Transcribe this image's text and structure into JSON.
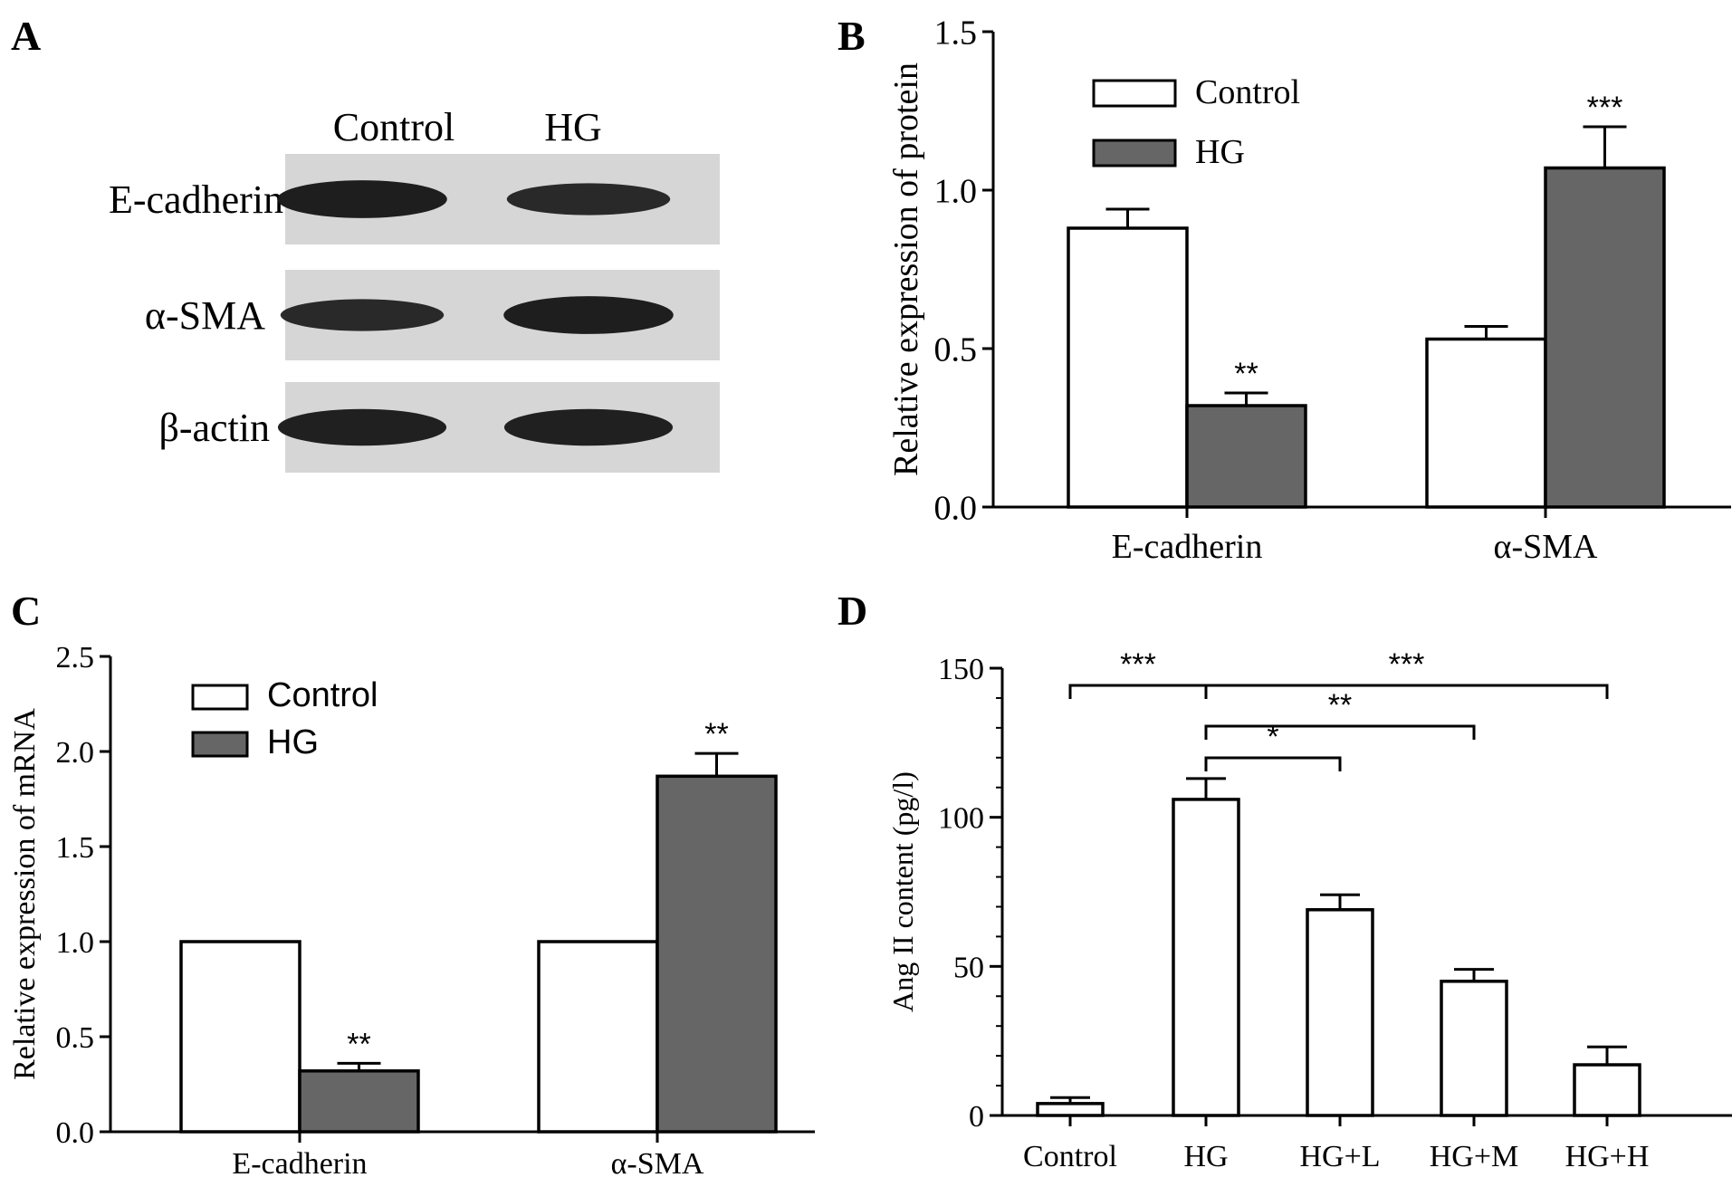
{
  "panel_a": {
    "letter": "A",
    "columns": [
      "Control",
      "HG"
    ],
    "bands": [
      {
        "label": "E-cadherin",
        "intensity": [
          0.95,
          0.8
        ]
      },
      {
        "label": "α-SMA",
        "intensity": [
          0.8,
          0.95
        ]
      },
      {
        "label": "β-actin",
        "intensity": [
          0.92,
          0.92
        ]
      }
    ],
    "colors": {
      "membrane": "#d6d6d6",
      "band": "#1a1a1a"
    }
  },
  "chart_data": [
    {
      "panel": "B",
      "type": "bar",
      "categories": [
        "E-cadherin",
        "α-SMA"
      ],
      "series": [
        {
          "name": "Control",
          "values": [
            0.88,
            0.53
          ],
          "errors": [
            0.06,
            0.04
          ],
          "color": "#ffffff"
        },
        {
          "name": "HG",
          "values": [
            0.32,
            1.07
          ],
          "errors": [
            0.04,
            0.13
          ],
          "color": "#666666"
        }
      ],
      "significance": [
        [
          "",
          "**"
        ],
        [
          "",
          "***"
        ]
      ],
      "ylabel": "Relative expression of protein",
      "yticks": [
        "0.0",
        "0.5",
        "1.0",
        "1.5"
      ],
      "ylim": [
        0,
        1.5
      ],
      "legend": "top-left"
    },
    {
      "panel": "C",
      "type": "bar",
      "categories": [
        "E-cadherin",
        "α-SMA"
      ],
      "series": [
        {
          "name": "Control",
          "values": [
            1.0,
            1.0
          ],
          "errors": [
            0,
            0
          ],
          "color": "#ffffff"
        },
        {
          "name": "HG",
          "values": [
            0.32,
            1.87
          ],
          "errors": [
            0.04,
            0.12
          ],
          "color": "#666666"
        }
      ],
      "significance": [
        [
          "",
          "**"
        ],
        [
          "",
          "**"
        ]
      ],
      "ylabel": "Relative expression of mRNA",
      "yticks": [
        "0.0",
        "0.5",
        "1.0",
        "1.5",
        "2.0",
        "2.5"
      ],
      "ylim": [
        0,
        2.5
      ],
      "legend": "top-left"
    },
    {
      "panel": "D",
      "type": "bar",
      "categories": [
        "Control",
        "HG",
        "HG+L",
        "HG+M",
        "HG+H"
      ],
      "series": [
        {
          "name": "",
          "values": [
            4,
            106,
            69,
            45,
            17
          ],
          "errors": [
            2,
            7,
            5,
            4,
            6
          ],
          "color": "#ffffff"
        }
      ],
      "comparisons": [
        {
          "from": "Control",
          "to": "HG",
          "label": "***"
        },
        {
          "from": "HG",
          "to": "HG+H",
          "label": "***"
        },
        {
          "from": "HG",
          "to": "HG+M",
          "label": "**"
        },
        {
          "from": "HG",
          "to": "HG+L",
          "label": "*"
        }
      ],
      "ylabel": "Ang II content  (pg/l)",
      "yticks": [
        "0",
        "50",
        "100",
        "150"
      ],
      "ylim": [
        0,
        150
      ],
      "minor_ticks_per_major": 5
    }
  ]
}
